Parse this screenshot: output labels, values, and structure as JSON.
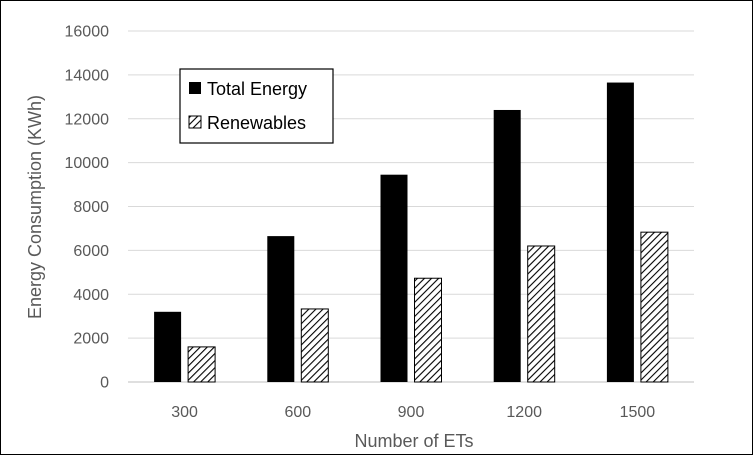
{
  "chart_data": {
    "type": "bar",
    "categories": [
      "300",
      "600",
      "900",
      "1200",
      "1500"
    ],
    "series": [
      {
        "name": "Total Energy",
        "values": [
          3200,
          6650,
          9450,
          12400,
          13650
        ],
        "fill": "#000000",
        "pattern": "solid"
      },
      {
        "name": "Renewables",
        "values": [
          1600,
          3330,
          4730,
          6200,
          6830
        ],
        "fill": "#ffffff",
        "pattern": "diagonal-hatch"
      }
    ],
    "xlabel": "Number of ETs",
    "ylabel": "Energy Consumption (KWh)",
    "ylim": [
      0,
      16000
    ],
    "yticks": [
      0,
      2000,
      4000,
      6000,
      8000,
      10000,
      12000,
      14000,
      16000
    ],
    "grid": true,
    "legend": {
      "placement": "top-left"
    },
    "colors": {
      "gridline": "#d9d9d9",
      "axis": "#bfbfbf",
      "text": "#595959"
    }
  }
}
